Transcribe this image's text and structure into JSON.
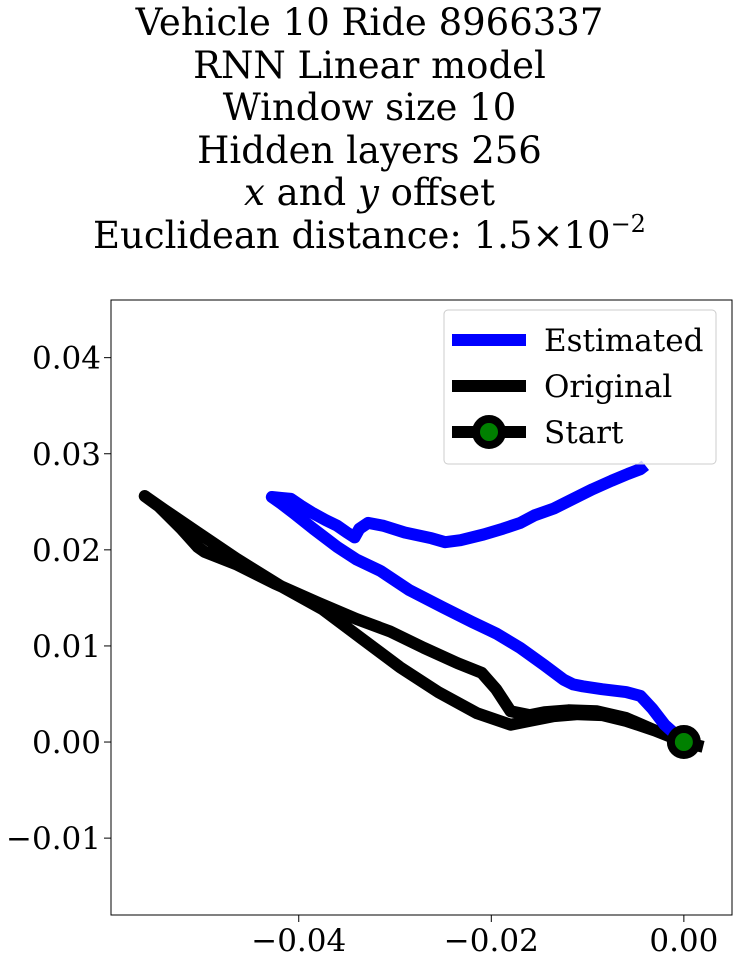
{
  "chart_data": {
    "type": "line",
    "title_lines": {
      "line1": "Vehicle 10 Ride 8966337",
      "line2": "RNN Linear model",
      "line3": "Window size 10",
      "line4": "Hidden layers 256",
      "line5_var_x": "x",
      "line5_mid": " and ",
      "line5_var_y": "y",
      "line5_end": " offset",
      "line6_prefix": "Euclidean distance: ",
      "line6_mantissa": "1.5",
      "line6_times": "×",
      "line6_base": "10",
      "line6_exp": "−2"
    },
    "xlabel": "",
    "ylabel": "",
    "xlim": [
      -0.0595,
      0.005
    ],
    "ylim": [
      -0.018,
      0.046
    ],
    "x_ticks": [
      {
        "value": -0.04,
        "label": "−0.04"
      },
      {
        "value": -0.02,
        "label": "−0.02"
      },
      {
        "value": 0.0,
        "label": "0.00"
      }
    ],
    "y_ticks": [
      {
        "value": -0.01,
        "label": "−0.01"
      },
      {
        "value": 0.0,
        "label": "0.00"
      },
      {
        "value": 0.01,
        "label": "0.01"
      },
      {
        "value": 0.02,
        "label": "0.02"
      },
      {
        "value": 0.03,
        "label": "0.03"
      },
      {
        "value": 0.04,
        "label": "0.04"
      }
    ],
    "grid": false,
    "legend_position": "top-right",
    "series": [
      {
        "name": "Estimated",
        "color": "#0000ff",
        "points": [
          [
            0.0,
            0.0
          ],
          [
            -0.002,
            0.0018
          ],
          [
            -0.0033,
            0.0035
          ],
          [
            -0.0045,
            0.0048
          ],
          [
            -0.006,
            0.0052
          ],
          [
            -0.0085,
            0.0055
          ],
          [
            -0.0105,
            0.0058
          ],
          [
            -0.0115,
            0.006
          ],
          [
            -0.0125,
            0.0065
          ],
          [
            -0.0145,
            0.008
          ],
          [
            -0.017,
            0.0098
          ],
          [
            -0.0195,
            0.0113
          ],
          [
            -0.022,
            0.0125
          ],
          [
            -0.025,
            0.014
          ],
          [
            -0.0285,
            0.0158
          ],
          [
            -0.0315,
            0.0178
          ],
          [
            -0.034,
            0.019
          ],
          [
            -0.036,
            0.0203
          ],
          [
            -0.0385,
            0.0222
          ],
          [
            -0.0405,
            0.0238
          ],
          [
            -0.0418,
            0.0248
          ],
          [
            -0.0428,
            0.0255
          ],
          [
            -0.0418,
            0.0254
          ],
          [
            -0.0408,
            0.0253
          ],
          [
            -0.0398,
            0.0246
          ],
          [
            -0.0385,
            0.0238
          ],
          [
            -0.0372,
            0.0231
          ],
          [
            -0.036,
            0.0225
          ],
          [
            -0.035,
            0.0218
          ],
          [
            -0.0342,
            0.0213
          ],
          [
            -0.0337,
            0.0222
          ],
          [
            -0.0328,
            0.0228
          ],
          [
            -0.0312,
            0.0225
          ],
          [
            -0.029,
            0.0218
          ],
          [
            -0.0262,
            0.0212
          ],
          [
            -0.0248,
            0.0208
          ],
          [
            -0.0232,
            0.021
          ],
          [
            -0.0208,
            0.0216
          ],
          [
            -0.0188,
            0.0222
          ],
          [
            -0.017,
            0.0228
          ],
          [
            -0.0155,
            0.0236
          ],
          [
            -0.0135,
            0.0243
          ],
          [
            -0.0115,
            0.0253
          ],
          [
            -0.0095,
            0.0263
          ],
          [
            -0.0075,
            0.0272
          ],
          [
            -0.0058,
            0.0279
          ],
          [
            -0.0045,
            0.0284
          ],
          [
            -0.004,
            0.0288
          ]
        ]
      },
      {
        "name": "Original",
        "color": "#000000",
        "points": [
          [
            0.002,
            -0.0005
          ],
          [
            0.0,
            0.0
          ],
          [
            -0.003,
            0.0012
          ],
          [
            -0.006,
            0.0025
          ],
          [
            -0.009,
            0.0032
          ],
          [
            -0.012,
            0.0033
          ],
          [
            -0.0145,
            0.0031
          ],
          [
            -0.016,
            0.0028
          ],
          [
            -0.018,
            0.0032
          ],
          [
            -0.0195,
            0.0055
          ],
          [
            -0.021,
            0.0072
          ],
          [
            -0.0235,
            0.0082
          ],
          [
            -0.027,
            0.0098
          ],
          [
            -0.0305,
            0.0115
          ],
          [
            -0.034,
            0.0128
          ],
          [
            -0.038,
            0.0145
          ],
          [
            -0.0425,
            0.0165
          ],
          [
            -0.0465,
            0.0185
          ],
          [
            -0.0498,
            0.0198
          ],
          [
            -0.0505,
            0.0203
          ],
          [
            -0.0522,
            0.0222
          ],
          [
            -0.0545,
            0.0245
          ],
          [
            -0.056,
            0.0256
          ],
          [
            -0.054,
            0.0242
          ],
          [
            -0.0505,
            0.0218
          ],
          [
            -0.0465,
            0.0191
          ],
          [
            -0.042,
            0.0163
          ],
          [
            -0.0375,
            0.0138
          ],
          [
            -0.0335,
            0.0108
          ],
          [
            -0.0295,
            0.0078
          ],
          [
            -0.0255,
            0.0052
          ],
          [
            -0.0215,
            0.003
          ],
          [
            -0.018,
            0.0018
          ],
          [
            -0.016,
            0.0022
          ],
          [
            -0.0135,
            0.0027
          ],
          [
            -0.011,
            0.0029
          ],
          [
            -0.0085,
            0.0028
          ],
          [
            -0.006,
            0.0022
          ],
          [
            -0.003,
            0.0012
          ],
          [
            0.0,
            0.0
          ]
        ]
      },
      {
        "name": "Start",
        "color": "#000000",
        "marker_fill": "#008000",
        "points": [
          [
            0.0,
            0.0
          ]
        ]
      }
    ]
  }
}
